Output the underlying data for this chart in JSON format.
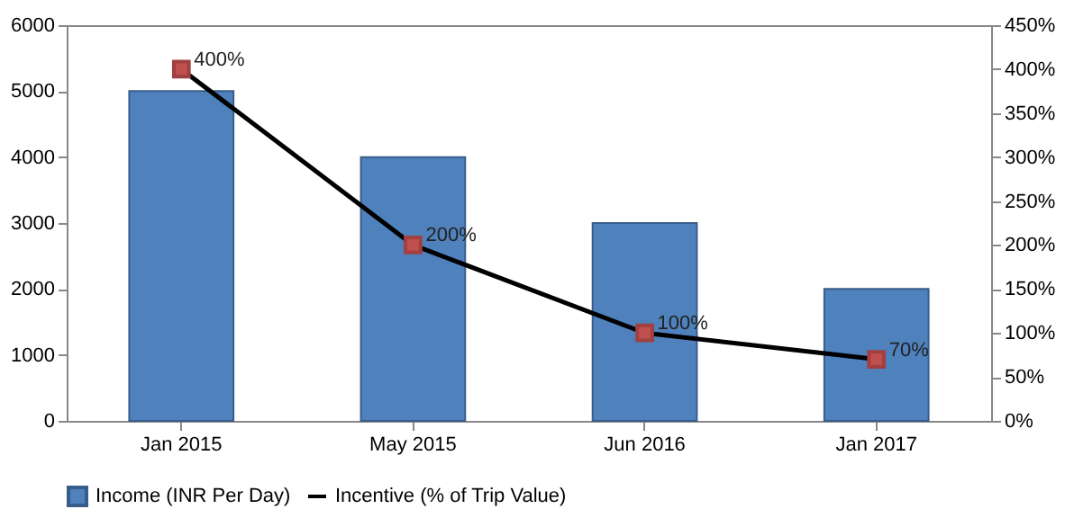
{
  "chart_data": {
    "type": "bar",
    "categories": [
      "Jan 2015",
      "May 2015",
      "Jun 2016",
      "Jan 2017"
    ],
    "series": [
      {
        "name": "Income (INR Per Day)",
        "color": "#4f81bd",
        "values": [
          5000,
          4000,
          3000,
          2000
        ]
      },
      {
        "name": "Incentive (% of Trip Value)",
        "type": "line",
        "axis": "y2",
        "color": "#000000",
        "colors": [
          "#c0504d",
          "#c0504d",
          "#c0504d",
          "#c0504d"
        ],
        "values": [
          400,
          200,
          100,
          70
        ],
        "value_labels": [
          "400%",
          "200%",
          "100%",
          "70%"
        ]
      }
    ],
    "ylim": [
      0,
      6000
    ],
    "yticks": [
      0,
      1000,
      2000,
      3000,
      4000,
      5000,
      6000
    ],
    "y2lim": [
      0,
      450
    ],
    "y2ticks": [
      {
        "value": 0,
        "label": "0%"
      },
      {
        "value": 50,
        "label": "50%"
      },
      {
        "value": 100,
        "label": "100%"
      },
      {
        "value": 150,
        "label": "150%"
      },
      {
        "value": 200,
        "label": "200%"
      },
      {
        "value": 250,
        "label": "250%"
      },
      {
        "value": 300,
        "label": "300%"
      },
      {
        "value": 350,
        "label": "350%"
      },
      {
        "value": 400,
        "label": "400%"
      },
      {
        "value": 450,
        "label": "450%"
      }
    ],
    "marker": "square",
    "line_style": "solid",
    "grid": false,
    "legend": "bottom"
  }
}
